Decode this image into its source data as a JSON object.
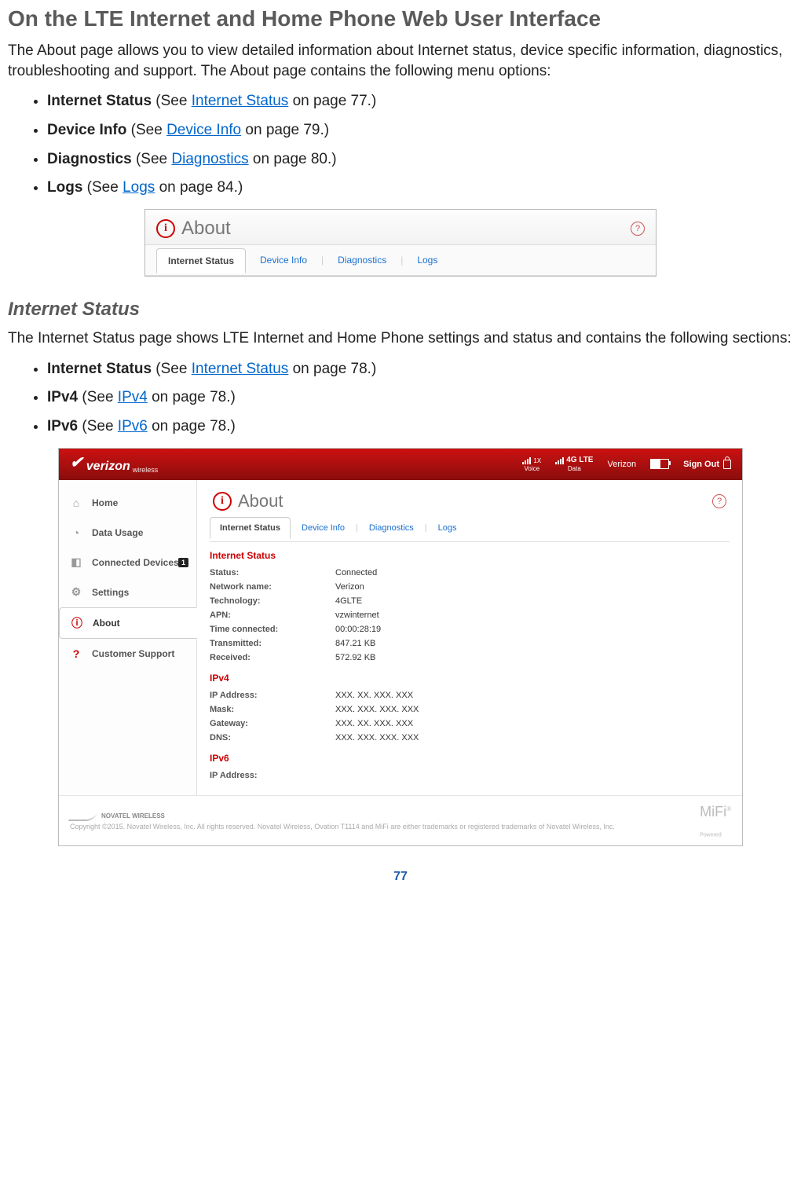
{
  "heading_main": "On the LTE Internet and Home Phone Web User Interface",
  "intro_paragraph": "The About page allows you to view detailed information about Internet status, device specific information, diagnostics, troubleshooting and support. The About page contains the following menu options:",
  "bullets1": [
    {
      "bold": "Internet Status",
      "pre": " (See ",
      "link": "Internet Status",
      "post": " on page 77.)"
    },
    {
      "bold": "Device Info",
      "pre": " (See ",
      "link": "Device Info",
      "post": " on page 79.)"
    },
    {
      "bold": "Diagnostics",
      "pre": " (See ",
      "link": "Diagnostics",
      "post": " on page 80.)"
    },
    {
      "bold": "Logs",
      "pre": " (See ",
      "link": "Logs",
      "post": " on page 84.)"
    }
  ],
  "about_panel": {
    "title": "About",
    "tabs": {
      "active": "Internet Status",
      "t1": "Device Info",
      "t2": "Diagnostics",
      "t3": "Logs"
    }
  },
  "heading_sub": "Internet Status",
  "sub_paragraph": "The Internet Status page shows LTE Internet and Home Phone settings and status and contains the following sections:",
  "bullets2": [
    {
      "bold": "Internet Status",
      "pre": " (See ",
      "link": "Internet Status",
      "post": " on page 78.)"
    },
    {
      "bold": "IPv4",
      "pre": " (See ",
      "link": "IPv4",
      "post": " on page 78.)"
    },
    {
      "bold": "IPv6",
      "pre": " (See ",
      "link": "IPv6",
      "post": " on page 78.)"
    }
  ],
  "admin": {
    "brand": "verizon",
    "brand_sub": "wireless",
    "topbar": {
      "voice_label": "Voice",
      "voice_val": "1X",
      "data_label": "Data",
      "lte": "4G LTE",
      "carrier": "Verizon",
      "signout": "Sign Out"
    },
    "sidebar": {
      "home": "Home",
      "data_usage": "Data Usage",
      "connected_devices": "Connected Devices",
      "connected_badge": "1",
      "settings": "Settings",
      "about": "About",
      "customer_support": "Customer Support"
    },
    "panel": {
      "title": "About",
      "tabs": {
        "active": "Internet Status",
        "t1": "Device Info",
        "t2": "Diagnostics",
        "t3": "Logs"
      },
      "section1_title": "Internet Status",
      "rows1": {
        "status_l": "Status:",
        "status_v": "Connected",
        "network_l": "Network name:",
        "network_v": "Verizon",
        "tech_l": "Technology:",
        "tech_v": "4GLTE",
        "apn_l": "APN:",
        "apn_v": "vzwinternet",
        "time_l": "Time connected:",
        "time_v": "00:00:28:19",
        "tx_l": "Transmitted:",
        "tx_v": "847.21 KB",
        "rx_l": "Received:",
        "rx_v": "572.92 KB"
      },
      "section2_title": "IPv4",
      "rows2": {
        "ip_l": "IP Address:",
        "ip_v": "XXX. XX. XXX. XXX",
        "mask_l": "Mask:",
        "mask_v": "XXX. XXX. XXX. XXX",
        "gw_l": "Gateway:",
        "gw_v": "XXX. XX. XXX. XXX",
        "dns_l": "DNS:",
        "dns_v": "XXX. XXX. XXX. XXX"
      },
      "section3_title": "IPv6",
      "rows3": {
        "ip6_l": "IP Address:",
        "ip6_v": ""
      }
    },
    "footer": {
      "novatel": "NOVATEL WIRELESS",
      "copyright": "Copyright ©2015. Novatel Wireless, Inc. All rights reserved. Novatel Wireless, Ovation T1114 and MiFi are either trademarks or registered trademarks of Novatel Wireless, Inc.",
      "mifi": "MiFi",
      "mifi_sub": "Powered"
    }
  },
  "page_number": "77"
}
